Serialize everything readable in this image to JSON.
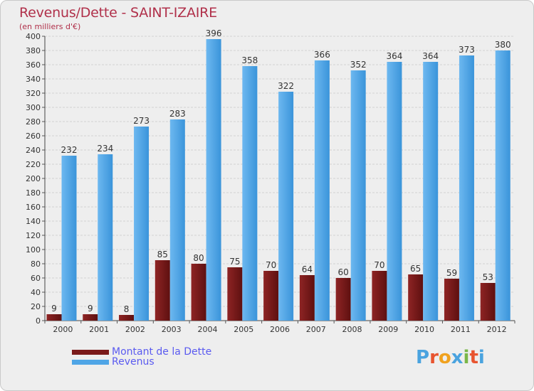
{
  "header": {
    "title": "Revenus/Dette - SAINT-IZAIRE",
    "subtitle": "(en milliers d'€)"
  },
  "legend": {
    "dette_label": "Montant de la Dette",
    "revenus_label": "Revenus"
  },
  "brand": {
    "letters": [
      "P",
      "r",
      "o",
      "x",
      "i",
      "t",
      "i"
    ],
    "colors": [
      "#4aa3df",
      "#e8542f",
      "#f0a21f",
      "#4aa3df",
      "#7ab648",
      "#e8542f",
      "#4aa3df"
    ]
  },
  "colors": {
    "dette": "#7a1a1a",
    "revenus": "#4fa5e6",
    "title": "#b0304a",
    "legend_text": "#5a5af0"
  },
  "chart_data": {
    "type": "bar",
    "title": "Revenus/Dette - SAINT-IZAIRE",
    "ylabel": "(en milliers d'€)",
    "xlabel": "",
    "categories": [
      "2000",
      "2001",
      "2002",
      "2003",
      "2004",
      "2005",
      "2006",
      "2007",
      "2008",
      "2009",
      "2010",
      "2011",
      "2012"
    ],
    "series": [
      {
        "name": "Montant de la Dette",
        "values": [
          9,
          9,
          8,
          85,
          80,
          75,
          70,
          64,
          60,
          70,
          65,
          59,
          53
        ]
      },
      {
        "name": "Revenus",
        "values": [
          232,
          234,
          273,
          283,
          396,
          358,
          322,
          366,
          352,
          364,
          364,
          373,
          380
        ]
      }
    ],
    "ylim": [
      0,
      400
    ],
    "ytick_step": 20,
    "grid": true,
    "legend_position": "bottom-left"
  }
}
